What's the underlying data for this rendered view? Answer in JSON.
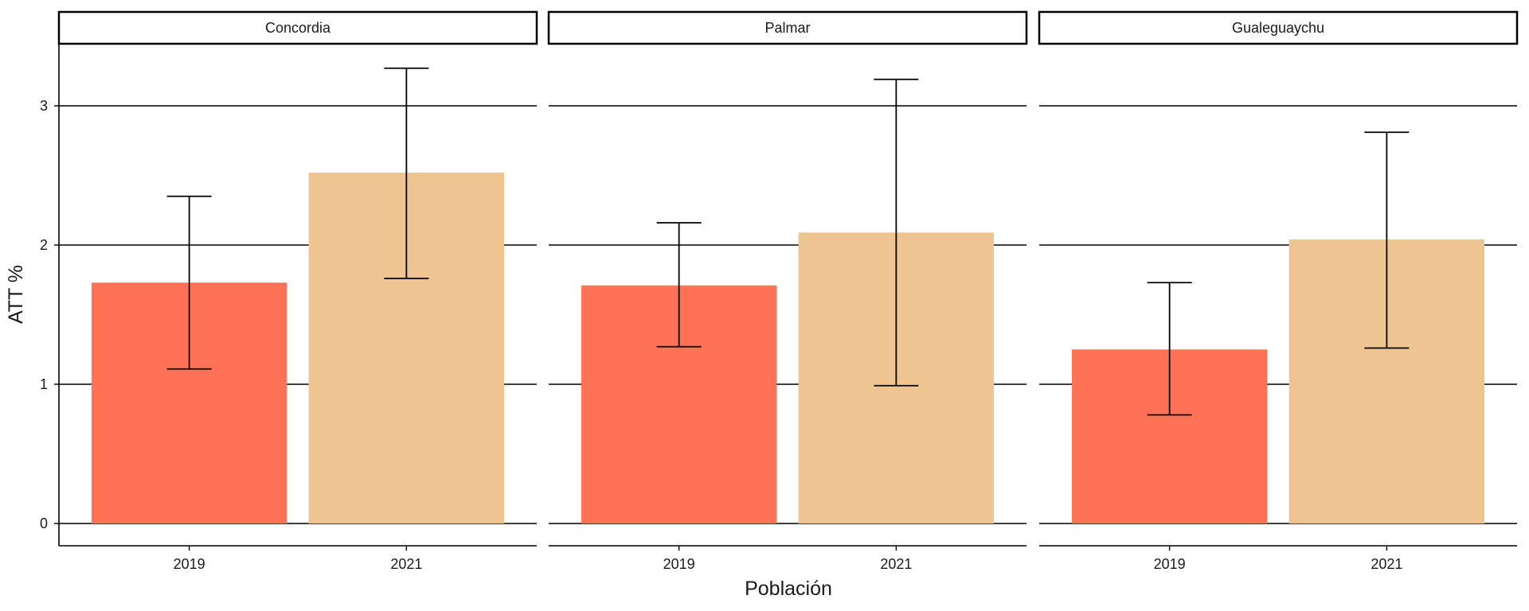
{
  "chart_data": {
    "type": "bar",
    "facets": [
      "Concordia",
      "Palmar",
      "Gualeguaychu"
    ],
    "categories": [
      "2019",
      "2021"
    ],
    "series": [
      {
        "facet": "Concordia",
        "values": [
          1.73,
          2.52
        ],
        "error_low": [
          1.11,
          1.76
        ],
        "error_high": [
          2.35,
          3.27
        ]
      },
      {
        "facet": "Palmar",
        "values": [
          1.71,
          2.09
        ],
        "error_low": [
          1.27,
          0.99
        ],
        "error_high": [
          2.16,
          3.19
        ]
      },
      {
        "facet": "Gualeguaychu",
        "values": [
          1.25,
          2.04
        ],
        "error_low": [
          0.78,
          1.26
        ],
        "error_high": [
          1.73,
          2.81
        ]
      }
    ],
    "xlabel": "Población",
    "ylabel": "ATT %",
    "ylim": [
      0,
      3.4
    ],
    "yticks": [
      0,
      1,
      2,
      3
    ],
    "grid": "horizontal major lines",
    "legend": "none",
    "colors": {
      "2019": "#ff7256",
      "2021": "#eec591"
    }
  }
}
